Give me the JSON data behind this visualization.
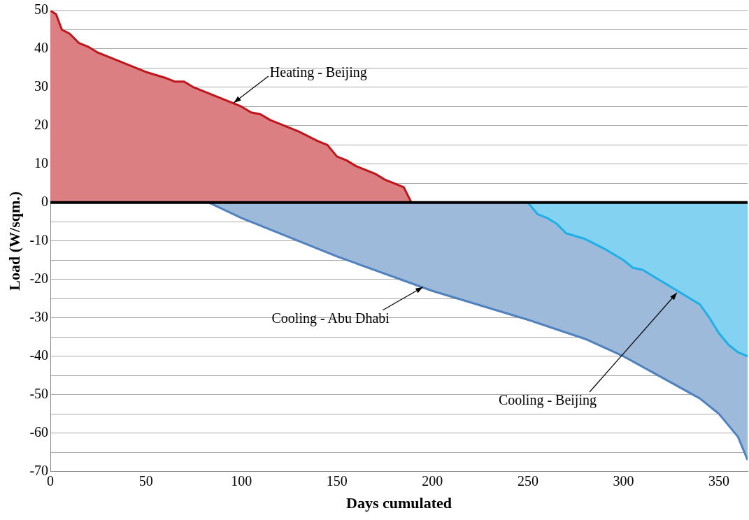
{
  "chart_data": {
    "type": "area",
    "xlabel": "Days cumulated",
    "ylabel": "Load (W/sqm.)",
    "xlim": [
      0,
      365
    ],
    "xticks": [
      0,
      50,
      100,
      150,
      200,
      250,
      300,
      350
    ],
    "ylim": [
      -70,
      50
    ],
    "yticks": [
      -70,
      {
        "value": -65,
        "label": null
      },
      -60,
      {
        "value": -55,
        "label": null
      },
      -50,
      {
        "value": -45,
        "label": null
      },
      -40,
      {
        "value": -35,
        "label": null
      },
      -30,
      {
        "value": -25,
        "label": null
      },
      -20,
      {
        "value": -15,
        "label": null
      },
      -10,
      {
        "value": -5,
        "label": null
      },
      0,
      {
        "value": 5,
        "label": null
      },
      10,
      {
        "value": 15,
        "label": null
      },
      20,
      {
        "value": 25,
        "label": null
      },
      30,
      {
        "value": 35,
        "label": null
      },
      40,
      {
        "value": 45,
        "label": null
      },
      50
    ],
    "grid": "y",
    "legend": false,
    "marker": "none",
    "line_style": "solid",
    "ref_lines": [
      {
        "axis": "y",
        "value": 0,
        "color": "#000000"
      }
    ],
    "series": [
      {
        "color": "#c0161b",
        "x": [
          0,
          3,
          6,
          10,
          15,
          20,
          25,
          30,
          35,
          40,
          50,
          60,
          65,
          70,
          75,
          85,
          95,
          100,
          105,
          110,
          115,
          125,
          130,
          140,
          145,
          150,
          155,
          160,
          170,
          175,
          180,
          185,
          189
        ],
        "values": [
          50,
          49,
          45,
          44,
          41.5,
          40.5,
          39,
          38,
          37,
          36,
          34,
          32.5,
          31.5,
          31.5,
          30,
          28,
          26,
          25,
          23.5,
          23,
          21.5,
          19.5,
          18.5,
          16,
          15,
          12,
          11,
          9.5,
          7.5,
          6,
          5,
          4,
          0
        ]
      },
      {
        "color": "#4f81bd",
        "x": [
          83,
          100,
          150,
          200,
          250,
          280,
          300,
          320,
          340,
          350,
          360,
          365
        ],
        "values": [
          0,
          -4,
          -14,
          -23,
          -30.5,
          -35.5,
          -40,
          -45.5,
          -51,
          -55,
          -61,
          -67
        ]
      },
      {
        "color": "#1eaee8",
        "x": [
          250,
          255,
          260,
          265,
          270,
          280,
          290,
          300,
          305,
          310,
          320,
          330,
          340,
          345,
          350,
          355,
          360,
          365
        ],
        "values": [
          0,
          -3,
          -4,
          -5.5,
          -8,
          -9.5,
          -12,
          -15,
          -17,
          -17.5,
          -20.5,
          -23.5,
          -26.5,
          -30,
          -34,
          -37,
          -39,
          -40
        ]
      }
    ],
    "annotations": [
      {
        "text": "Heating - Beijing",
        "x": 96,
        "y": 26
      },
      {
        "text": "Cooling - Abu Dhabi",
        "x": 195,
        "y": -22
      },
      {
        "text": "Cooling - Beijing",
        "x": 328,
        "y": -23.5
      }
    ]
  }
}
